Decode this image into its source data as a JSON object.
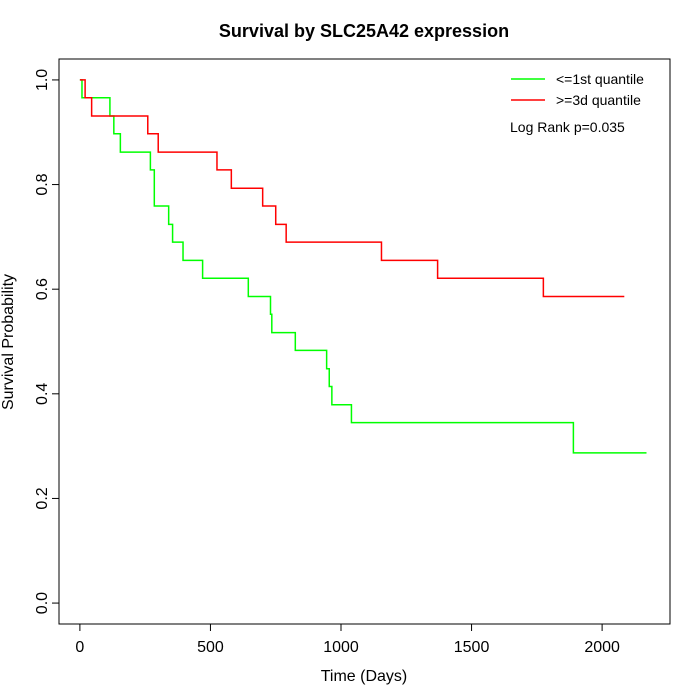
{
  "chart_data": {
    "type": "line",
    "title": "Survival by SLC25A42 expression",
    "xlabel": "Time (Days)",
    "ylabel": "Survival Probability",
    "xlim": [
      -80,
      2260
    ],
    "ylim": [
      -0.04,
      1.04
    ],
    "x_ticks": [
      0,
      500,
      1000,
      1500,
      2000
    ],
    "y_ticks": [
      0.0,
      0.2,
      0.4,
      0.6,
      0.8,
      1.0
    ],
    "x_tick_labels": [
      "0",
      "500",
      "1000",
      "1500",
      "2000"
    ],
    "y_tick_labels": [
      "0.0",
      "0.2",
      "0.4",
      "0.6",
      "0.8",
      "1.0"
    ],
    "grid": false,
    "legend_position": "top-right",
    "annotation": "Log Rank p=0.035",
    "series": [
      {
        "name": "<=1st quantile",
        "color": "#00ff00",
        "step": true,
        "x": [
          0,
          8,
          115,
          130,
          155,
          270,
          285,
          295,
          340,
          355,
          395,
          470,
          645,
          730,
          735,
          745,
          825,
          945,
          955,
          965,
          1040,
          1890,
          2170
        ],
        "y": [
          1.0,
          0.966,
          0.931,
          0.897,
          0.862,
          0.828,
          0.759,
          0.759,
          0.724,
          0.69,
          0.655,
          0.621,
          0.586,
          0.552,
          0.517,
          0.517,
          0.483,
          0.448,
          0.414,
          0.379,
          0.345,
          0.287,
          0.287
        ]
      },
      {
        "name": ">=3d quantile",
        "color": "#ff0000",
        "step": true,
        "x": [
          0,
          20,
          45,
          260,
          300,
          525,
          580,
          700,
          750,
          790,
          1155,
          1370,
          1775,
          2085
        ],
        "y": [
          1.0,
          0.966,
          0.931,
          0.897,
          0.862,
          0.828,
          0.793,
          0.759,
          0.724,
          0.69,
          0.655,
          0.621,
          0.586,
          0.586
        ]
      }
    ]
  }
}
